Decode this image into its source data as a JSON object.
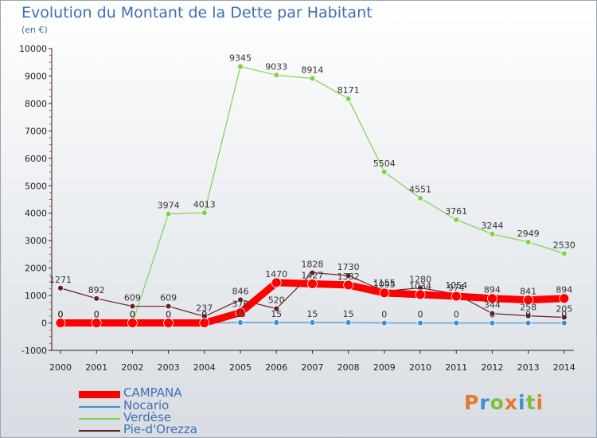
{
  "header": {
    "title": "Evolution du Montant de la Dette par Habitant",
    "unit": "(en €)"
  },
  "logo": {
    "text": "Proxiti"
  },
  "colors": {
    "CAMPANA": "#ff0000",
    "Nocario": "#3d8fd6",
    "Verdèse": "#7fd34a",
    "Pie-d'Orezza": "#6b1f24",
    "title": "#3d6fb3"
  },
  "chart_data": {
    "type": "line",
    "title": "Evolution du Montant de la Dette par Habitant",
    "xlabel": "",
    "ylabel": "(en €)",
    "categories": [
      "2000",
      "2001",
      "2002",
      "2003",
      "2004",
      "2005",
      "2006",
      "2007",
      "2008",
      "2009",
      "2010",
      "2011",
      "2012",
      "2013",
      "2014"
    ],
    "ylim": [
      -1000,
      10000
    ],
    "yticks": [
      -1000,
      0,
      1000,
      2000,
      3000,
      4000,
      5000,
      6000,
      7000,
      8000,
      9000,
      10000
    ],
    "grid": false,
    "legend": "bottom-left",
    "series": [
      {
        "name": "CAMPANA",
        "values": [
          0,
          0,
          0,
          0,
          0,
          376,
          1470,
          1427,
          1382,
          1095,
          1034,
          974,
          894,
          841,
          894
        ]
      },
      {
        "name": "Nocario",
        "values": [
          0,
          0,
          0,
          0,
          0,
          15,
          15,
          15,
          15,
          0,
          0,
          0,
          0,
          0,
          0
        ]
      },
      {
        "name": "Verdèse",
        "values": [
          0,
          0,
          0,
          3974,
          4013,
          9345,
          9033,
          8914,
          8171,
          5504,
          4551,
          3761,
          3244,
          2949,
          2530
        ]
      },
      {
        "name": "Pie-d'Orezza",
        "values": [
          1271,
          892,
          609,
          609,
          237,
          846,
          520,
          1828,
          1730,
          1155,
          1280,
          1054,
          344,
          258,
          205
        ]
      }
    ]
  }
}
